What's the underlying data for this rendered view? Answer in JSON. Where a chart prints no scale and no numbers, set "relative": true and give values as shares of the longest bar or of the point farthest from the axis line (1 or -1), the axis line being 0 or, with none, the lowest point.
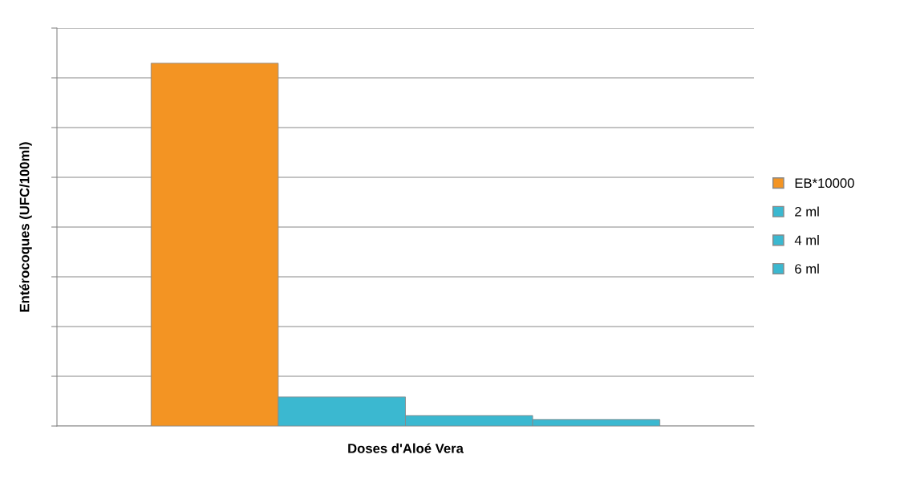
{
  "chart_data": {
    "type": "bar",
    "relative": true,
    "categories": [
      null
    ],
    "xlabel": "Doses d'Aloé Vera",
    "ylabel": "Entérocoques (UFC/100ml)",
    "series": [
      {
        "name": "EB*10000",
        "color": "#f39423",
        "values": [
          1
        ]
      },
      {
        "name": "2 ml",
        "color": "#3bb8d0",
        "values": [
          0.08
        ]
      },
      {
        "name": "4 ml",
        "color": "#3bb8d0",
        "values": [
          0.029
        ]
      },
      {
        "name": "6 ml",
        "color": "#3bb8d0",
        "values": [
          0.018
        ]
      }
    ],
    "grid": "y",
    "legend": "right"
  }
}
